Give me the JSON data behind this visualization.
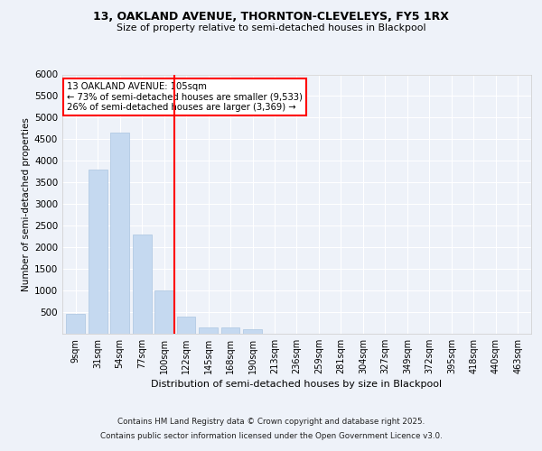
{
  "title1": "13, OAKLAND AVENUE, THORNTON-CLEVELEYS, FY5 1RX",
  "title2": "Size of property relative to semi-detached houses in Blackpool",
  "xlabel": "Distribution of semi-detached houses by size in Blackpool",
  "ylabel": "Number of semi-detached properties",
  "bar_labels": [
    "9sqm",
    "31sqm",
    "54sqm",
    "77sqm",
    "100sqm",
    "122sqm",
    "145sqm",
    "168sqm",
    "190sqm",
    "213sqm",
    "236sqm",
    "259sqm",
    "281sqm",
    "304sqm",
    "327sqm",
    "349sqm",
    "372sqm",
    "395sqm",
    "418sqm",
    "440sqm",
    "463sqm"
  ],
  "bar_heights": [
    450,
    3800,
    4650,
    2300,
    1000,
    400,
    150,
    150,
    100,
    0,
    0,
    0,
    0,
    0,
    0,
    0,
    0,
    0,
    0,
    0,
    0
  ],
  "bar_color": "#c5d9f0",
  "bar_edgecolor": "#aac4e0",
  "vline_x": 4.45,
  "vline_color": "red",
  "property_name": "13 OAKLAND AVENUE: 105sqm",
  "pct_smaller": "73% of semi-detached houses are smaller (9,533)",
  "pct_larger": "26% of semi-detached houses are larger (3,369)",
  "ylim": [
    0,
    6000
  ],
  "yticks": [
    0,
    500,
    1000,
    1500,
    2000,
    2500,
    3000,
    3500,
    4000,
    4500,
    5000,
    5500,
    6000
  ],
  "background_color": "#eef2f9",
  "grid_color": "#ffffff",
  "footer1": "Contains HM Land Registry data © Crown copyright and database right 2025.",
  "footer2": "Contains public sector information licensed under the Open Government Licence v3.0."
}
